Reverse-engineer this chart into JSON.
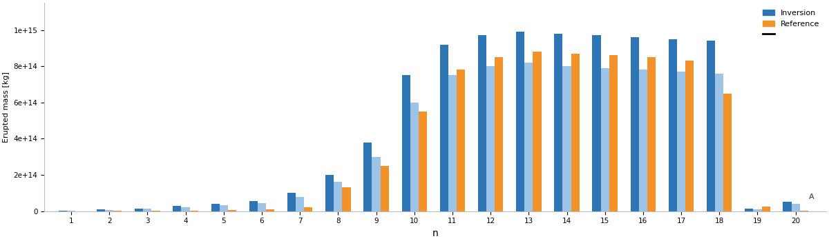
{
  "xlabel": "n",
  "ylabel": "Erupted mass [kg]",
  "blue_dark_label": "Inversion",
  "orange_label": "Reference",
  "bar_width": 0.22,
  "n_groups": 20,
  "blue_dark_values": [
    3000000000000.0,
    8000000000000.0,
    15000000000000.0,
    28000000000000.0,
    40000000000000.0,
    55000000000000.0,
    100000000000000.0,
    200000000000000.0,
    380000000000000.0,
    750000000000000.0,
    920000000000000.0,
    970000000000000.0,
    990000000000000.0,
    980000000000000.0,
    970000000000000.0,
    960000000000000.0,
    950000000000000.0,
    940000000000000.0,
    12000000000000.0,
    50000000000000.0
  ],
  "blue_light_values": [
    2000000000000.0,
    6000000000000.0,
    12000000000000.0,
    22000000000000.0,
    32000000000000.0,
    45000000000000.0,
    80000000000000.0,
    160000000000000.0,
    300000000000000.0,
    600000000000000.0,
    750000000000000.0,
    800000000000000.0,
    820000000000000.0,
    800000000000000.0,
    790000000000000.0,
    780000000000000.0,
    770000000000000.0,
    760000000000000.0,
    10000000000000.0,
    40000000000000.0
  ],
  "orange_values": [
    0,
    300000000000.0,
    600000000000.0,
    1200000000000.0,
    5000000000000.0,
    10000000000000.0,
    20000000000000.0,
    130000000000000.0,
    250000000000000.0,
    550000000000000.0,
    780000000000000.0,
    850000000000000.0,
    880000000000000.0,
    870000000000000.0,
    860000000000000.0,
    850000000000000.0,
    830000000000000.0,
    650000000000000.0,
    25000000000000.0,
    1000000000000.0
  ],
  "blue_dark_color": "#2e75b6",
  "blue_light_color": "#9dc3e6",
  "orange_color": "#f4922a",
  "ylim": [
    0,
    1150000000000000.0
  ],
  "yticks": [
    0,
    200000000000000.0,
    400000000000000.0,
    600000000000000.0,
    800000000000000.0,
    1000000000000000.0
  ],
  "background_color": "#ffffff",
  "figsize": [
    12.0,
    3.5
  ],
  "dpi": 100,
  "spine_color": "#bbbbbb"
}
